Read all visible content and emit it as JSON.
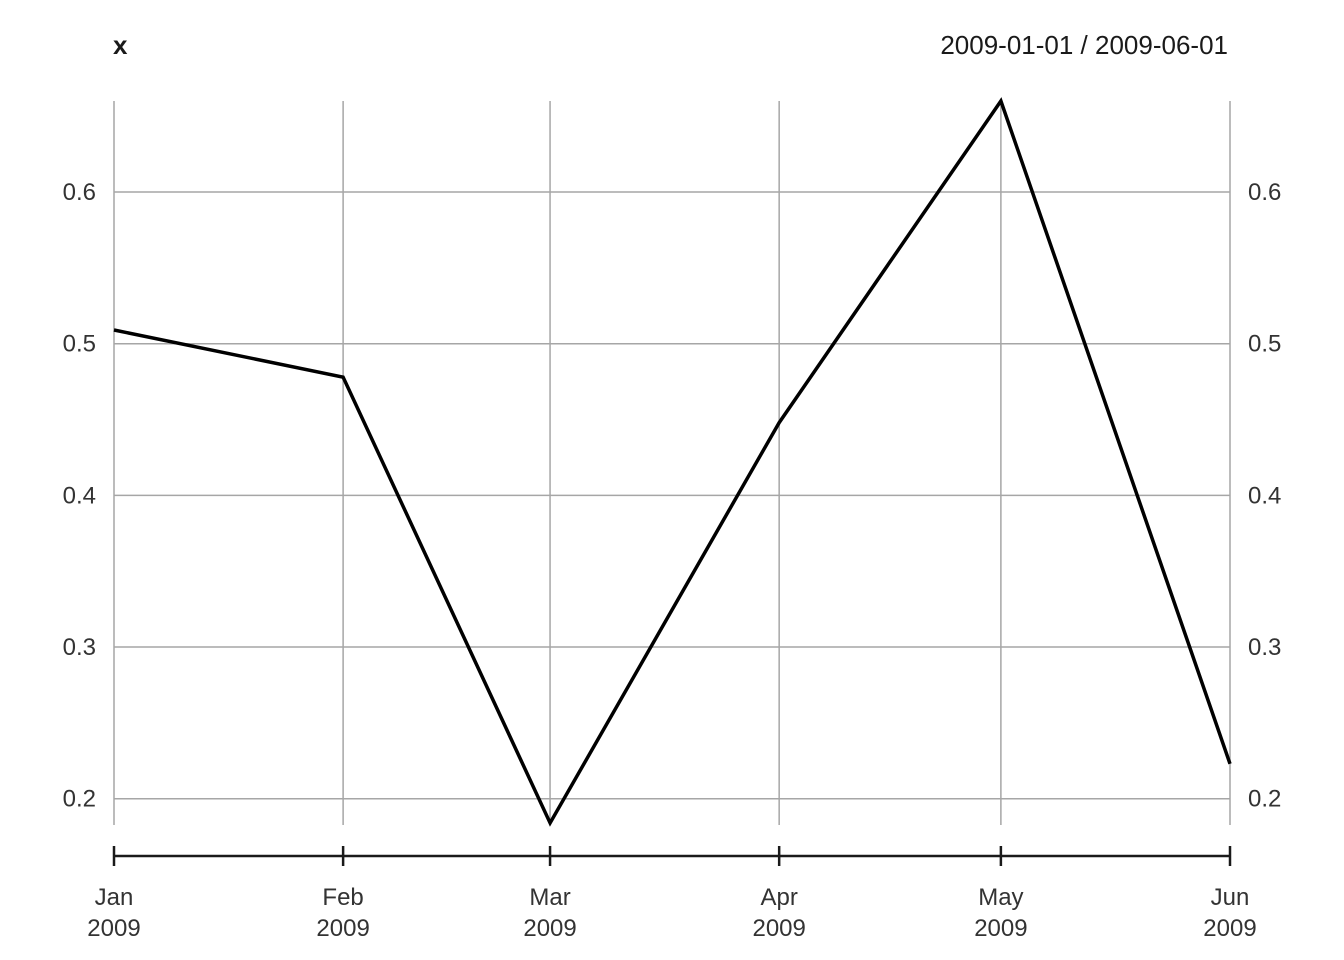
{
  "title": "x",
  "date_range": "2009-01-01 / 2009-06-01",
  "colors": {
    "series": "#000000",
    "grid": "#a6a6a6",
    "axis": "#1a1a1a",
    "text": "#333333"
  },
  "chart_data": {
    "type": "line",
    "title": "x",
    "subtitle": "2009-01-01 / 2009-06-01",
    "xlabel": "",
    "ylabel": "",
    "x": [
      "2009-01-01",
      "2009-02-01",
      "2009-03-01",
      "2009-04-01",
      "2009-05-01",
      "2009-06-01"
    ],
    "x_tick_labels": [
      {
        "month": "Jan",
        "year": "2009"
      },
      {
        "month": "Feb",
        "year": "2009"
      },
      {
        "month": "Mar",
        "year": "2009"
      },
      {
        "month": "Apr",
        "year": "2009"
      },
      {
        "month": "May",
        "year": "2009"
      },
      {
        "month": "Jun",
        "year": "2009"
      }
    ],
    "series": [
      {
        "values": [
          0.509,
          0.478,
          0.184,
          0.448,
          0.66,
          0.223
        ]
      }
    ],
    "y_ticks": [
      0.2,
      0.3,
      0.4,
      0.5,
      0.6
    ],
    "y_tick_labels": [
      "0.2",
      "0.3",
      "0.4",
      "0.5",
      "0.6"
    ],
    "ylim": [
      0.184,
      0.66
    ],
    "grid": true,
    "y_axis_labels_both_sides": true
  }
}
